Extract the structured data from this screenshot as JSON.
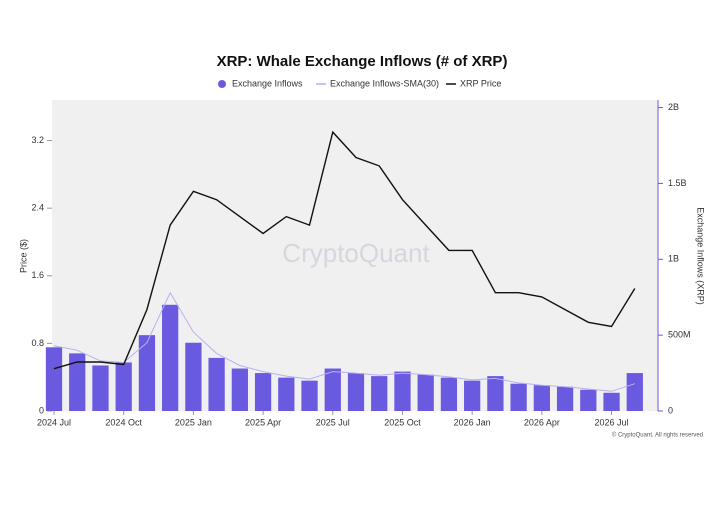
{
  "chart_data": {
    "type": "combo",
    "title": "XRP: Whale Exchange Inflows (# of XRP)",
    "ylabel": "Price ($)",
    "y2label": "Exchange Inflows (XRP)",
    "watermark": "CryptoQuant",
    "credit": "© CryptoQuant. All rights reserved",
    "x": [
      "2024-07",
      "2024-08",
      "2024-09",
      "2024-10",
      "2024-11",
      "2024-12",
      "2025-01",
      "2025-02",
      "2025-03",
      "2025-04",
      "2025-05",
      "2025-06",
      "2025-07",
      "2025-08",
      "2025-09",
      "2025-10",
      "2025-11",
      "2025-12",
      "2026-01",
      "2026-02",
      "2026-03",
      "2026-04",
      "2026-05",
      "2026-06",
      "2026-07",
      "2026-08"
    ],
    "xlim": [
      "2024-07",
      "2026-09"
    ],
    "xticks": [
      {
        "value": "2024-07",
        "label": "2024 Jul"
      },
      {
        "value": "2024-10",
        "label": "2024 Oct"
      },
      {
        "value": "2025-01",
        "label": "2025 Jan"
      },
      {
        "value": "2025-04",
        "label": "2025 Apr"
      },
      {
        "value": "2025-07",
        "label": "2025 Jul"
      },
      {
        "value": "2025-10",
        "label": "2025 Oct"
      },
      {
        "value": "2026-01",
        "label": "2026 Jan"
      },
      {
        "value": "2026-04",
        "label": "2026 Apr"
      },
      {
        "value": "2026-07",
        "label": "2026 Jul"
      }
    ],
    "ylim": [
      0,
      3.68
    ],
    "yticks": [
      0,
      0.8,
      1.6,
      2.4,
      3.2
    ],
    "y2lim": [
      0,
      2050000000
    ],
    "y2ticks": [
      0,
      {
        "value": 500000000,
        "label": "500M"
      },
      {
        "value": 1000000000,
        "label": "1B"
      },
      {
        "value": 1500000000,
        "label": "1.5B"
      },
      {
        "value": 2000000000,
        "label": "2B"
      }
    ],
    "series": [
      {
        "name": "Exchange Inflows",
        "type": "bar",
        "axis": "y2",
        "color": "#6a5ae0",
        "values": [
          420000000,
          380000000,
          300000000,
          320000000,
          500000000,
          700000000,
          450000000,
          350000000,
          280000000,
          250000000,
          220000000,
          200000000,
          280000000,
          250000000,
          230000000,
          260000000,
          240000000,
          220000000,
          200000000,
          230000000,
          180000000,
          170000000,
          160000000,
          140000000,
          120000000,
          250000000
        ]
      },
      {
        "name": "Exchange Inflows-SMA(30)",
        "type": "line",
        "axis": "y2",
        "color": "#b9b0f0",
        "values": [
          430000000,
          400000000,
          330000000,
          320000000,
          450000000,
          780000000,
          520000000,
          380000000,
          300000000,
          260000000,
          230000000,
          210000000,
          260000000,
          250000000,
          235000000,
          250000000,
          240000000,
          225000000,
          205000000,
          215000000,
          185000000,
          170000000,
          160000000,
          145000000,
          130000000,
          180000000
        ]
      },
      {
        "name": "XRP Price",
        "type": "line",
        "axis": "y",
        "color": "#111111",
        "values": [
          0.5,
          0.58,
          0.58,
          0.55,
          1.2,
          2.2,
          2.6,
          2.5,
          2.3,
          2.1,
          2.3,
          2.2,
          3.3,
          3.0,
          2.9,
          2.5,
          2.2,
          1.9,
          1.9,
          1.4,
          1.4,
          1.35,
          1.2,
          1.05,
          1.0,
          1.45
        ]
      }
    ]
  }
}
